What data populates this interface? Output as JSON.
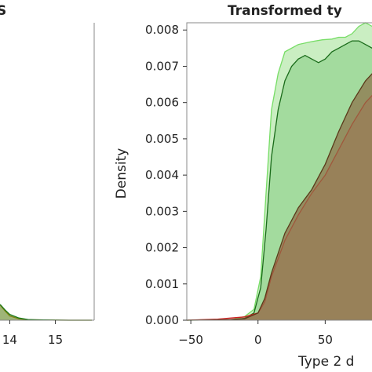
{
  "chart_data": [
    {
      "type": "area",
      "title_fragment": "S",
      "x_ticks": [
        "14",
        "15"
      ],
      "x_range": [
        13.7,
        15.85
      ],
      "y_range": [
        0,
        0.0082
      ],
      "series": [
        {
          "color": "#b8860b",
          "x": [
            13.7,
            13.8,
            13.9,
            14.0,
            14.2,
            14.4,
            14.6,
            14.9,
            15.3,
            15.8
          ],
          "y": [
            0.00045,
            0.0004,
            0.00025,
            0.00012,
            4e-05,
            1e-05,
            1e-05,
            5e-06,
            0.0,
            0.0
          ]
        },
        {
          "color": "#1a7a1a",
          "x": [
            13.7,
            13.8,
            13.9,
            14.0,
            14.2,
            14.4,
            14.6,
            14.9,
            15.3,
            15.8
          ],
          "y": [
            0.0005,
            0.00042,
            0.00028,
            0.00016,
            6e-05,
            2e-05,
            1e-05,
            5e-06,
            0.0,
            0.0
          ]
        }
      ]
    },
    {
      "type": "area",
      "title": "Transformed ty",
      "xlabel": "Type 2 d",
      "ylabel": "Density",
      "x_ticks": [
        -50,
        0,
        50
      ],
      "x_tick_labels": [
        "−50",
        "0",
        "50"
      ],
      "y_ticks": [
        0.0,
        0.001,
        0.002,
        0.003,
        0.004,
        0.005,
        0.006,
        0.007,
        0.008
      ],
      "y_tick_labels": [
        "0.000",
        "0.001",
        "0.002",
        "0.003",
        "0.004",
        "0.005",
        "0.006",
        "0.007",
        "0.008"
      ],
      "x_range": [
        -53,
        93
      ],
      "y_range": [
        0,
        0.0082
      ],
      "series": [
        {
          "color": "#77dd66",
          "fill": "#9fe08f",
          "x": [
            -53,
            -20,
            -10,
            -3,
            2,
            6,
            10,
            15,
            20,
            30,
            40,
            48,
            55,
            60,
            65,
            70,
            75,
            80,
            85,
            88,
            93
          ],
          "y": [
            0,
            1e-05,
            0.0001,
            0.0003,
            0.0012,
            0.0035,
            0.0058,
            0.0068,
            0.0074,
            0.0076,
            0.00768,
            0.00773,
            0.00775,
            0.0078,
            0.0078,
            0.0079,
            0.0081,
            0.0082,
            0.0081,
            0.0078,
            0.0074
          ]
        },
        {
          "color": "#1a6b1a",
          "x": [
            -53,
            -20,
            -10,
            -3,
            2,
            6,
            10,
            15,
            20,
            25,
            30,
            35,
            40,
            45,
            50,
            55,
            60,
            65,
            70,
            75,
            80,
            85,
            93
          ],
          "y": [
            0,
            1e-05,
            5e-05,
            0.0002,
            0.0009,
            0.0025,
            0.0045,
            0.0058,
            0.0066,
            0.007,
            0.0072,
            0.0073,
            0.0072,
            0.0071,
            0.0072,
            0.0074,
            0.0075,
            0.0076,
            0.0077,
            0.0077,
            0.0076,
            0.0075,
            0.0073
          ]
        },
        {
          "color": "#cc2222",
          "x": [
            -53,
            -30,
            -20,
            -10,
            0,
            5,
            10,
            20,
            30,
            40,
            50,
            60,
            70,
            80,
            90,
            93
          ],
          "y": [
            0,
            3e-05,
            6e-05,
            9e-05,
            0.0002,
            0.0005,
            0.0012,
            0.0022,
            0.0029,
            0.0035,
            0.004,
            0.0047,
            0.0054,
            0.006,
            0.0064,
            0.0065
          ]
        },
        {
          "color": "#5a3a1a",
          "x": [
            -53,
            -30,
            -20,
            -10,
            0,
            5,
            10,
            20,
            30,
            40,
            50,
            60,
            70,
            80,
            90,
            93
          ],
          "y": [
            0,
            1e-05,
            2e-05,
            4e-05,
            0.0002,
            0.0006,
            0.0013,
            0.0024,
            0.0031,
            0.0036,
            0.0043,
            0.0052,
            0.006,
            0.0066,
            0.007,
            0.0071
          ]
        }
      ]
    }
  ]
}
